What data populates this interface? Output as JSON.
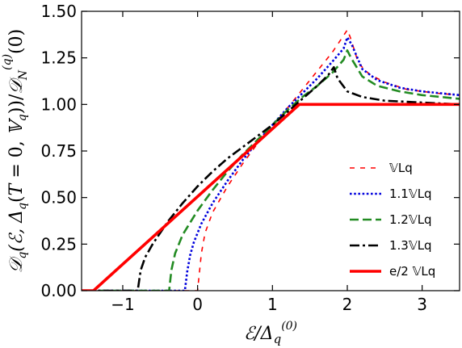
{
  "chart_data": {
    "type": "line",
    "title": "",
    "xlabel": "ℰ/Δq(0)",
    "ylabel": "𝒟q(ℰ, Δq(T = 0, 𝕍q))/𝒟N(q)(0)",
    "xlim": [
      -1.55,
      3.5
    ],
    "ylim": [
      0.0,
      1.5
    ],
    "xticks": [
      -1,
      0,
      1,
      2,
      3
    ],
    "xtick_labels": [
      "−1",
      "0",
      "1",
      "2",
      "3"
    ],
    "yticks": [
      0.0,
      0.25,
      0.5,
      0.75,
      1.0,
      1.25,
      1.5
    ],
    "ytick_labels": [
      "0.00",
      "0.25",
      "0.50",
      "0.75",
      "1.00",
      "1.25",
      "1.50"
    ],
    "grid": false,
    "legend_position": "lower-right",
    "series": [
      {
        "name": "𝕍Lq",
        "color": "#ff0000",
        "style": "dashed-fine",
        "width": 1.6,
        "points": [
          [
            -2,
            0
          ],
          [
            0,
            0
          ],
          [
            0.02,
            0.08
          ],
          [
            0.05,
            0.2
          ],
          [
            0.1,
            0.31
          ],
          [
            0.2,
            0.42
          ],
          [
            0.4,
            0.56
          ],
          [
            0.6,
            0.68
          ],
          [
            0.8,
            0.79
          ],
          [
            1.0,
            0.88
          ],
          [
            1.2,
            0.98
          ],
          [
            1.4,
            1.08
          ],
          [
            1.6,
            1.18
          ],
          [
            1.8,
            1.28
          ],
          [
            1.95,
            1.37
          ],
          [
            2.0,
            1.4
          ],
          [
            2.04,
            1.36
          ],
          [
            2.15,
            1.22
          ],
          [
            2.3,
            1.16
          ],
          [
            2.5,
            1.12
          ],
          [
            2.8,
            1.08
          ],
          [
            3.2,
            1.06
          ],
          [
            3.5,
            1.05
          ]
        ]
      },
      {
        "name": "1.1𝕍Lq",
        "color": "#0000dd",
        "style": "dotted",
        "width": 2.6,
        "points": [
          [
            -2,
            0
          ],
          [
            -0.17,
            0
          ],
          [
            -0.14,
            0.1
          ],
          [
            -0.1,
            0.19
          ],
          [
            -0.05,
            0.26
          ],
          [
            0.05,
            0.36
          ],
          [
            0.2,
            0.47
          ],
          [
            0.4,
            0.59
          ],
          [
            0.6,
            0.7
          ],
          [
            0.8,
            0.8
          ],
          [
            1.0,
            0.89
          ],
          [
            1.2,
            0.98
          ],
          [
            1.4,
            1.06
          ],
          [
            1.6,
            1.14
          ],
          [
            1.8,
            1.23
          ],
          [
            1.95,
            1.3
          ],
          [
            2.0,
            1.36
          ],
          [
            2.06,
            1.32
          ],
          [
            2.2,
            1.19
          ],
          [
            2.4,
            1.13
          ],
          [
            2.7,
            1.09
          ],
          [
            3.0,
            1.07
          ],
          [
            3.5,
            1.05
          ]
        ]
      },
      {
        "name": "1.2𝕍Lq",
        "color": "#228b22",
        "style": "dashed",
        "width": 2.6,
        "points": [
          [
            -2,
            0
          ],
          [
            -0.38,
            0
          ],
          [
            -0.35,
            0.11
          ],
          [
            -0.3,
            0.2
          ],
          [
            -0.2,
            0.3
          ],
          [
            0.0,
            0.43
          ],
          [
            0.2,
            0.54
          ],
          [
            0.4,
            0.64
          ],
          [
            0.6,
            0.73
          ],
          [
            0.8,
            0.81
          ],
          [
            1.0,
            0.89
          ],
          [
            1.2,
            0.97
          ],
          [
            1.4,
            1.04
          ],
          [
            1.6,
            1.1
          ],
          [
            1.8,
            1.17
          ],
          [
            1.95,
            1.24
          ],
          [
            2.0,
            1.29
          ],
          [
            2.05,
            1.25
          ],
          [
            2.2,
            1.15
          ],
          [
            2.4,
            1.1
          ],
          [
            2.7,
            1.07
          ],
          [
            3.0,
            1.05
          ],
          [
            3.5,
            1.03
          ]
        ]
      },
      {
        "name": "1.3𝕍Lq",
        "color": "#000000",
        "style": "dashdot",
        "width": 2.6,
        "points": [
          [
            -2,
            0
          ],
          [
            -0.8,
            0
          ],
          [
            -0.76,
            0.11
          ],
          [
            -0.7,
            0.18
          ],
          [
            -0.6,
            0.25
          ],
          [
            -0.4,
            0.37
          ],
          [
            -0.2,
            0.47
          ],
          [
            0.0,
            0.56
          ],
          [
            0.2,
            0.64
          ],
          [
            0.4,
            0.71
          ],
          [
            0.6,
            0.77
          ],
          [
            0.8,
            0.83
          ],
          [
            1.0,
            0.89
          ],
          [
            1.2,
            0.96
          ],
          [
            1.4,
            1.03
          ],
          [
            1.6,
            1.1
          ],
          [
            1.75,
            1.16
          ],
          [
            1.82,
            1.2
          ],
          [
            1.87,
            1.14
          ],
          [
            2.0,
            1.07
          ],
          [
            2.2,
            1.04
          ],
          [
            2.5,
            1.02
          ],
          [
            3.0,
            1.01
          ],
          [
            3.5,
            1.0
          ]
        ]
      },
      {
        "name": "e/2 𝕍Lq",
        "color": "#ff0000",
        "style": "solid",
        "width": 3.6,
        "points": [
          [
            -2,
            0
          ],
          [
            -1.39,
            0
          ],
          [
            1.36,
            1.0
          ],
          [
            3.5,
            1.0
          ]
        ]
      }
    ]
  }
}
